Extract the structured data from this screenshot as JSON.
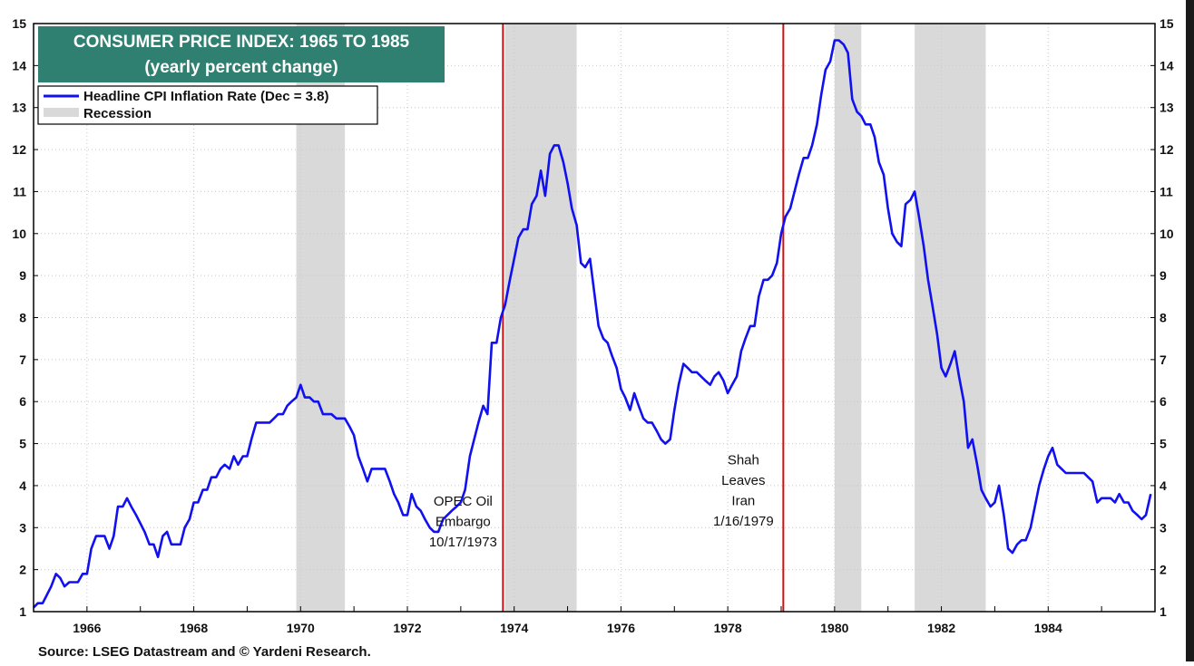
{
  "source": "Source: LSEG Datastream and © Yardeni Research.",
  "colors": {
    "line": "#1010f0",
    "recession": "#d9d9d9",
    "event_line": "#cc1111",
    "title_bg": "#2f8071",
    "title_text": "#ffffff"
  },
  "chart_data": {
    "type": "line",
    "title": "CONSUMER PRICE INDEX: 1965 TO 1985",
    "subtitle": "(yearly percent change)",
    "xlabel": "",
    "ylabel": "",
    "xlim": [
      1965.0,
      1986.0
    ],
    "ylim": [
      1,
      15
    ],
    "y_ticks": [
      1,
      2,
      3,
      4,
      5,
      6,
      7,
      8,
      9,
      10,
      11,
      12,
      13,
      14,
      15
    ],
    "x_ticks": [
      "1966",
      "1968",
      "1970",
      "1972",
      "1974",
      "1976",
      "1978",
      "1980",
      "1982",
      "1984"
    ],
    "x_tick_positions": [
      1966,
      1968,
      1970,
      1972,
      1974,
      1976,
      1978,
      1980,
      1982,
      1984
    ],
    "grid": true,
    "legend_position": "top-left",
    "legend": [
      "Headline CPI Inflation Rate (Dec = 3.8)",
      "Recession"
    ],
    "recessions": [
      {
        "start": 1969.92,
        "end": 1970.83
      },
      {
        "start": 1973.83,
        "end": 1975.17
      },
      {
        "start": 1980.0,
        "end": 1980.5
      },
      {
        "start": 1981.5,
        "end": 1982.83
      }
    ],
    "events": [
      {
        "x": 1973.79,
        "lines": [
          "OPEC Oil",
          "Embargo",
          "10/17/1973"
        ],
        "label_y": 2.55
      },
      {
        "x": 1979.04,
        "lines": [
          "Shah",
          "Leaves",
          "Iran",
          "1/16/1979"
        ],
        "label_y": 3.05
      }
    ],
    "series": [
      {
        "name": "Headline CPI Inflation Rate (Dec = 3.8)",
        "x": [
          1965.0,
          1965.08,
          1965.17,
          1965.25,
          1965.33,
          1965.42,
          1965.5,
          1965.58,
          1965.67,
          1965.75,
          1965.83,
          1965.92,
          1966.0,
          1966.08,
          1966.17,
          1966.25,
          1966.33,
          1966.42,
          1966.5,
          1966.58,
          1966.67,
          1966.75,
          1966.83,
          1966.92,
          1967.0,
          1967.08,
          1967.17,
          1967.25,
          1967.33,
          1967.42,
          1967.5,
          1967.58,
          1967.67,
          1967.75,
          1967.83,
          1967.92,
          1968.0,
          1968.08,
          1968.17,
          1968.25,
          1968.33,
          1968.42,
          1968.5,
          1968.58,
          1968.67,
          1968.75,
          1968.83,
          1968.92,
          1969.0,
          1969.08,
          1969.17,
          1969.25,
          1969.33,
          1969.42,
          1969.5,
          1969.58,
          1969.67,
          1969.75,
          1969.83,
          1969.92,
          1970.0,
          1970.08,
          1970.17,
          1970.25,
          1970.33,
          1970.42,
          1970.5,
          1970.58,
          1970.67,
          1970.75,
          1970.83,
          1970.92,
          1971.0,
          1971.08,
          1971.17,
          1971.25,
          1971.33,
          1971.42,
          1971.5,
          1971.58,
          1971.67,
          1971.75,
          1971.83,
          1971.92,
          1972.0,
          1972.08,
          1972.17,
          1972.25,
          1972.33,
          1972.42,
          1972.5,
          1972.58,
          1972.67,
          1972.75,
          1972.83,
          1972.92,
          1973.0,
          1973.08,
          1973.17,
          1973.25,
          1973.33,
          1973.42,
          1973.5,
          1973.58,
          1973.67,
          1973.75,
          1973.83,
          1973.92,
          1974.0,
          1974.08,
          1974.17,
          1974.25,
          1974.33,
          1974.42,
          1974.5,
          1974.58,
          1974.67,
          1974.75,
          1974.83,
          1974.92,
          1975.0,
          1975.08,
          1975.17,
          1975.25,
          1975.33,
          1975.42,
          1975.5,
          1975.58,
          1975.67,
          1975.75,
          1975.83,
          1975.92,
          1976.0,
          1976.08,
          1976.17,
          1976.25,
          1976.33,
          1976.42,
          1976.5,
          1976.58,
          1976.67,
          1976.75,
          1976.83,
          1976.92,
          1977.0,
          1977.08,
          1977.17,
          1977.25,
          1977.33,
          1977.42,
          1977.5,
          1977.58,
          1977.67,
          1977.75,
          1977.83,
          1977.92,
          1978.0,
          1978.08,
          1978.17,
          1978.25,
          1978.33,
          1978.42,
          1978.5,
          1978.58,
          1978.67,
          1978.75,
          1978.83,
          1978.92,
          1979.0,
          1979.08,
          1979.17,
          1979.25,
          1979.33,
          1979.42,
          1979.5,
          1979.58,
          1979.67,
          1979.75,
          1979.83,
          1979.92,
          1980.0,
          1980.08,
          1980.17,
          1980.25,
          1980.33,
          1980.42,
          1980.5,
          1980.58,
          1980.67,
          1980.75,
          1980.83,
          1980.92,
          1981.0,
          1981.08,
          1981.17,
          1981.25,
          1981.33,
          1981.42,
          1981.5,
          1981.58,
          1981.67,
          1981.75,
          1981.83,
          1981.92,
          1982.0,
          1982.08,
          1982.17,
          1982.25,
          1982.33,
          1982.42,
          1982.5,
          1982.58,
          1982.67,
          1982.75,
          1982.83,
          1982.92,
          1983.0,
          1983.08,
          1983.17,
          1983.25,
          1983.33,
          1983.42,
          1983.5,
          1983.58,
          1983.67,
          1983.75,
          1983.83,
          1983.92,
          1984.0,
          1984.08,
          1984.17,
          1984.25,
          1984.33,
          1984.42,
          1984.5,
          1984.58,
          1984.67,
          1984.75,
          1984.83,
          1984.92,
          1985.0,
          1985.08,
          1985.17,
          1985.25,
          1985.33,
          1985.42,
          1985.5,
          1985.58,
          1985.67,
          1985.75,
          1985.83,
          1985.92
        ],
        "values": [
          1.1,
          1.2,
          1.2,
          1.4,
          1.6,
          1.9,
          1.8,
          1.6,
          1.7,
          1.7,
          1.7,
          1.9,
          1.9,
          2.5,
          2.8,
          2.8,
          2.8,
          2.5,
          2.8,
          3.5,
          3.5,
          3.7,
          3.5,
          3.3,
          3.1,
          2.9,
          2.6,
          2.6,
          2.3,
          2.8,
          2.9,
          2.6,
          2.6,
          2.6,
          3.0,
          3.2,
          3.6,
          3.6,
          3.9,
          3.9,
          4.2,
          4.2,
          4.4,
          4.5,
          4.4,
          4.7,
          4.5,
          4.7,
          4.7,
          5.1,
          5.5,
          5.5,
          5.5,
          5.5,
          5.6,
          5.7,
          5.7,
          5.9,
          6.0,
          6.1,
          6.4,
          6.1,
          6.1,
          6.0,
          6.0,
          5.7,
          5.7,
          5.7,
          5.6,
          5.6,
          5.6,
          5.4,
          5.2,
          4.7,
          4.4,
          4.1,
          4.4,
          4.4,
          4.4,
          4.4,
          4.1,
          3.8,
          3.6,
          3.3,
          3.3,
          3.8,
          3.5,
          3.4,
          3.2,
          3.0,
          2.9,
          2.9,
          3.2,
          3.3,
          3.4,
          3.5,
          3.6,
          3.9,
          4.7,
          5.1,
          5.5,
          5.9,
          5.7,
          7.4,
          7.4,
          8.0,
          8.3,
          8.9,
          9.4,
          9.9,
          10.1,
          10.1,
          10.7,
          10.9,
          11.5,
          10.9,
          11.9,
          12.1,
          12.1,
          11.7,
          11.2,
          10.6,
          10.2,
          9.3,
          9.2,
          9.4,
          8.6,
          7.8,
          7.5,
          7.4,
          7.1,
          6.8,
          6.3,
          6.1,
          5.8,
          6.2,
          5.9,
          5.6,
          5.5,
          5.5,
          5.3,
          5.1,
          5.0,
          5.1,
          5.8,
          6.4,
          6.9,
          6.8,
          6.7,
          6.7,
          6.6,
          6.5,
          6.4,
          6.6,
          6.7,
          6.5,
          6.2,
          6.4,
          6.6,
          7.2,
          7.5,
          7.8,
          7.8,
          8.5,
          8.9,
          8.9,
          9.0,
          9.3,
          10.0,
          10.4,
          10.6,
          11.0,
          11.4,
          11.8,
          11.8,
          12.1,
          12.6,
          13.3,
          13.9,
          14.1,
          14.6,
          14.6,
          14.5,
          14.3,
          13.2,
          12.9,
          12.8,
          12.6,
          12.6,
          12.3,
          11.7,
          11.4,
          10.6,
          10.0,
          9.8,
          9.7,
          10.7,
          10.8,
          11.0,
          10.4,
          9.7,
          8.9,
          8.3,
          7.6,
          6.8,
          6.6,
          6.9,
          7.2,
          6.6,
          6.0,
          4.9,
          5.1,
          4.5,
          3.9,
          3.7,
          3.5,
          3.6,
          4.0,
          3.3,
          2.5,
          2.4,
          2.6,
          2.7,
          2.7,
          3.0,
          3.5,
          4.0,
          4.4,
          4.7,
          4.9,
          4.5,
          4.4,
          4.3,
          4.3,
          4.3,
          4.3,
          4.3,
          4.2,
          4.1,
          3.6,
          3.7,
          3.7,
          3.7,
          3.6,
          3.8,
          3.6,
          3.6,
          3.4,
          3.3,
          3.2,
          3.3,
          3.8
        ]
      }
    ]
  }
}
